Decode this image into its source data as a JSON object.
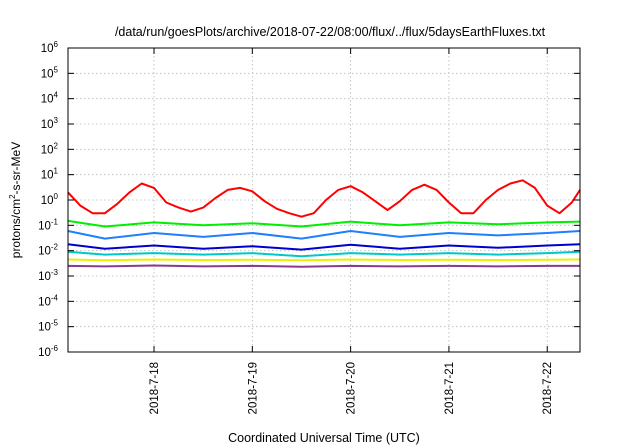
{
  "chart_data": {
    "type": "line",
    "title": "/data/run/goesPlots/archive/2018-07-22/08:00/flux/../flux/5daysEarthFluxes.txt",
    "xlabel": "Coordinated Universal Time (UTC)",
    "ylabel_parts": [
      "protons/cm",
      "2",
      "-s-sr-MeV"
    ],
    "y_scale": "log",
    "ylim": [
      1e-06,
      1000000.0
    ],
    "y_ticks": [
      {
        "base": "10",
        "exp": "6"
      },
      {
        "base": "10",
        "exp": "5"
      },
      {
        "base": "10",
        "exp": "4"
      },
      {
        "base": "10",
        "exp": "3"
      },
      {
        "base": "10",
        "exp": "2"
      },
      {
        "base": "10",
        "exp": "1"
      },
      {
        "base": "10",
        "exp": "0"
      },
      {
        "base": "10",
        "exp": "-1"
      },
      {
        "base": "10",
        "exp": "-2"
      },
      {
        "base": "10",
        "exp": "-3"
      },
      {
        "base": "10",
        "exp": "-4"
      },
      {
        "base": "10",
        "exp": "-5"
      },
      {
        "base": "10",
        "exp": "-6"
      }
    ],
    "x_ticks": [
      "2018-7-18",
      "2018-7-19",
      "2018-7-20",
      "2018-7-21",
      "2018-7-22"
    ],
    "xlim": [
      "2018-07-17 03:00",
      "2018-07-22 08:00"
    ],
    "grid": true,
    "series": [
      {
        "color": "#ff0000",
        "x": [
          "2018-07-17 03:00",
          "2018-07-17 06:00",
          "2018-07-17 09:00",
          "2018-07-17 12:00",
          "2018-07-17 15:00",
          "2018-07-17 18:00",
          "2018-07-17 21:00",
          "2018-07-18 00:00",
          "2018-07-18 03:00",
          "2018-07-18 06:00",
          "2018-07-18 09:00",
          "2018-07-18 12:00",
          "2018-07-18 15:00",
          "2018-07-18 18:00",
          "2018-07-18 21:00",
          "2018-07-19 00:00",
          "2018-07-19 03:00",
          "2018-07-19 06:00",
          "2018-07-19 09:00",
          "2018-07-19 12:00",
          "2018-07-19 15:00",
          "2018-07-19 18:00",
          "2018-07-19 21:00",
          "2018-07-20 00:00",
          "2018-07-20 03:00",
          "2018-07-20 06:00",
          "2018-07-20 09:00",
          "2018-07-20 12:00",
          "2018-07-20 15:00",
          "2018-07-20 18:00",
          "2018-07-20 21:00",
          "2018-07-21 00:00",
          "2018-07-21 03:00",
          "2018-07-21 06:00",
          "2018-07-21 09:00",
          "2018-07-21 12:00",
          "2018-07-21 15:00",
          "2018-07-21 18:00",
          "2018-07-21 21:00",
          "2018-07-22 00:00",
          "2018-07-22 03:00",
          "2018-07-22 06:00",
          "2018-07-22 08:00"
        ],
        "y": [
          2.0,
          0.6,
          0.3,
          0.3,
          0.7,
          2.0,
          4.5,
          3.0,
          0.8,
          0.5,
          0.35,
          0.5,
          1.2,
          2.5,
          3.0,
          2.2,
          0.9,
          0.45,
          0.3,
          0.22,
          0.3,
          1.0,
          2.5,
          3.5,
          2.0,
          0.9,
          0.4,
          0.9,
          2.5,
          4.0,
          2.5,
          0.8,
          0.3,
          0.3,
          1.0,
          2.5,
          4.5,
          6.0,
          3.0,
          0.6,
          0.3,
          0.8,
          2.5
        ]
      },
      {
        "color": "#00ee00",
        "x": [
          "2018-07-17 03:00",
          "2018-07-17 12:00",
          "2018-07-18 00:00",
          "2018-07-18 12:00",
          "2018-07-19 00:00",
          "2018-07-19 12:00",
          "2018-07-20 00:00",
          "2018-07-20 12:00",
          "2018-07-21 00:00",
          "2018-07-21 12:00",
          "2018-07-22 00:00",
          "2018-07-22 08:00"
        ],
        "y": [
          0.15,
          0.09,
          0.13,
          0.1,
          0.12,
          0.09,
          0.14,
          0.1,
          0.13,
          0.11,
          0.13,
          0.14
        ]
      },
      {
        "color": "#1e7fff",
        "x": [
          "2018-07-17 03:00",
          "2018-07-17 12:00",
          "2018-07-18 00:00",
          "2018-07-18 12:00",
          "2018-07-19 00:00",
          "2018-07-19 12:00",
          "2018-07-20 00:00",
          "2018-07-20 12:00",
          "2018-07-21 00:00",
          "2018-07-21 12:00",
          "2018-07-22 00:00",
          "2018-07-22 08:00"
        ],
        "y": [
          0.06,
          0.03,
          0.05,
          0.035,
          0.05,
          0.03,
          0.06,
          0.035,
          0.05,
          0.04,
          0.05,
          0.06
        ]
      },
      {
        "color": "#00c8c8",
        "x": [
          "2018-07-17 03:00",
          "2018-07-17 12:00",
          "2018-07-18 00:00",
          "2018-07-18 12:00",
          "2018-07-19 00:00",
          "2018-07-19 12:00",
          "2018-07-20 00:00",
          "2018-07-20 12:00",
          "2018-07-21 00:00",
          "2018-07-21 12:00",
          "2018-07-22 00:00",
          "2018-07-22 08:00"
        ],
        "y": [
          0.009,
          0.007,
          0.008,
          0.007,
          0.008,
          0.006,
          0.008,
          0.007,
          0.008,
          0.007,
          0.008,
          0.009
        ]
      },
      {
        "color": "#0000cc",
        "x": [
          "2018-07-17 03:00",
          "2018-07-17 12:00",
          "2018-07-18 00:00",
          "2018-07-18 12:00",
          "2018-07-19 00:00",
          "2018-07-19 12:00",
          "2018-07-20 00:00",
          "2018-07-20 12:00",
          "2018-07-21 00:00",
          "2018-07-21 12:00",
          "2018-07-22 00:00",
          "2018-07-22 08:00"
        ],
        "y": [
          0.018,
          0.012,
          0.016,
          0.012,
          0.015,
          0.011,
          0.017,
          0.012,
          0.016,
          0.013,
          0.016,
          0.018
        ]
      },
      {
        "color": "#eeee00",
        "x": [
          "2018-07-17 03:00",
          "2018-07-17 12:00",
          "2018-07-18 00:00",
          "2018-07-18 12:00",
          "2018-07-19 00:00",
          "2018-07-19 12:00",
          "2018-07-20 00:00",
          "2018-07-20 12:00",
          "2018-07-21 00:00",
          "2018-07-21 12:00",
          "2018-07-22 00:00",
          "2018-07-22 08:00"
        ],
        "y": [
          0.0045,
          0.0042,
          0.0045,
          0.0043,
          0.0044,
          0.0042,
          0.0045,
          0.0043,
          0.0044,
          0.0043,
          0.0044,
          0.0045
        ]
      },
      {
        "color": "#8b3a8b",
        "x": [
          "2018-07-17 03:00",
          "2018-07-17 12:00",
          "2018-07-18 00:00",
          "2018-07-18 12:00",
          "2018-07-19 00:00",
          "2018-07-19 12:00",
          "2018-07-20 00:00",
          "2018-07-20 12:00",
          "2018-07-21 00:00",
          "2018-07-21 12:00",
          "2018-07-22 00:00",
          "2018-07-22 08:00"
        ],
        "y": [
          0.0025,
          0.0024,
          0.0026,
          0.0024,
          0.0025,
          0.0023,
          0.0025,
          0.0024,
          0.0025,
          0.0024,
          0.0025,
          0.0025
        ]
      }
    ]
  }
}
